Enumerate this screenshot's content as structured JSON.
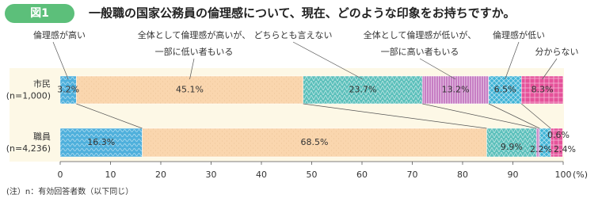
{
  "chart_data": {
    "type": "stacked-barh",
    "figure_label": "図1",
    "title": "一般職の国家公務員の倫理感について、現在、どのような印象をお持ちですか。",
    "categories": [
      [
        "市民",
        "(n=1,000)"
      ],
      [
        "職員",
        "(n=4,236)"
      ]
    ],
    "series": [
      {
        "name": "倫理感が高い",
        "color": "#4fb0dc",
        "values": [
          3.2,
          16.3
        ],
        "value_labels": [
          "3.2%",
          "16.3%"
        ]
      },
      {
        "name": "全体として倫理感が高いが、一部に低い者もいる",
        "color": "#fad6ae",
        "values": [
          45.1,
          68.5
        ],
        "value_labels": [
          "45.1%",
          "68.5%"
        ]
      },
      {
        "name": "どちらとも言えない",
        "color": "#5cc0bb",
        "values": [
          23.7,
          9.9
        ],
        "value_labels": [
          "23.7%",
          "9.9%"
        ]
      },
      {
        "name": "全体として倫理感が低いが、一部に高い者もいる",
        "color": "#c77fc4",
        "values": [
          13.2,
          0.6
        ],
        "value_labels": [
          "13.2%",
          "0.6%"
        ]
      },
      {
        "name": "倫理感が低い",
        "color": "#3fb3d6",
        "values": [
          6.5,
          2.2
        ],
        "value_labels": [
          "6.5%",
          "2.2%"
        ]
      },
      {
        "name": "分からない",
        "color": "#e5529a",
        "values": [
          8.3,
          2.4
        ],
        "value_labels": [
          "8.3%",
          "2.4%"
        ]
      }
    ],
    "xlim": [
      0,
      100
    ],
    "xticks": [
      0,
      10,
      20,
      30,
      40,
      50,
      60,
      70,
      80,
      90,
      100
    ],
    "xlabel": "(%)",
    "note": "(注）n：有効回答者数（以下同じ）"
  }
}
